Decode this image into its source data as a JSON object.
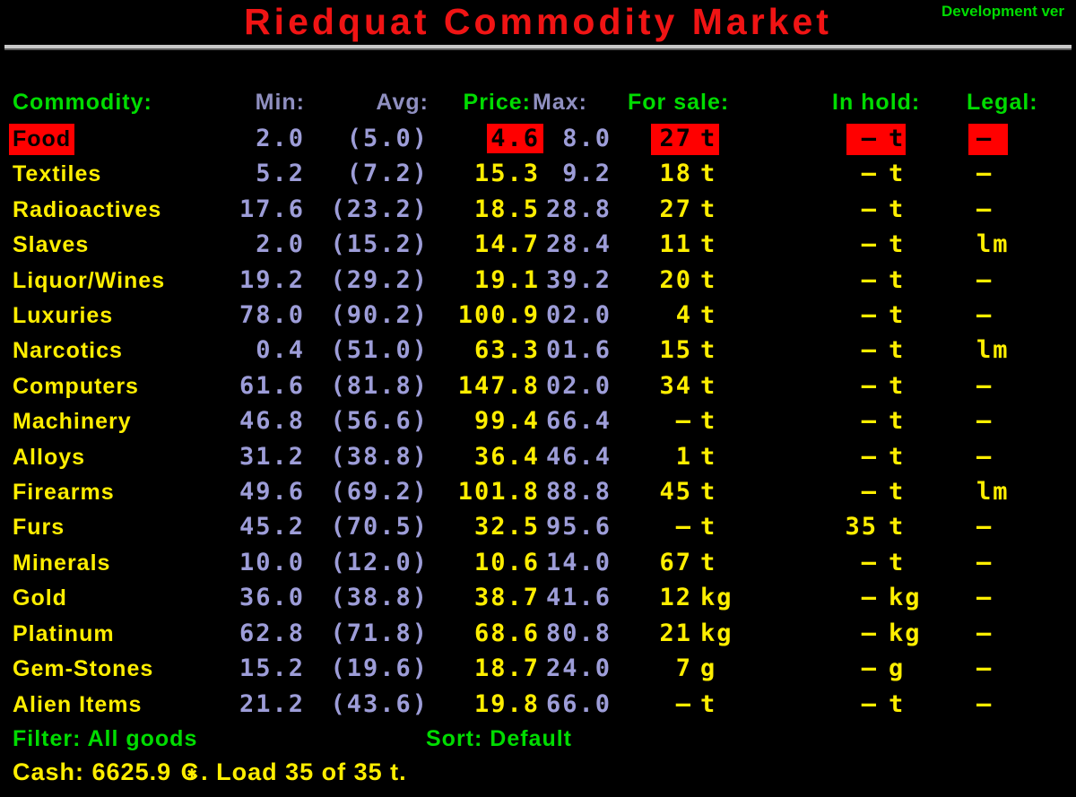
{
  "title": "Riedquat Commodity Market",
  "dev_version_label": "Development ver",
  "columns": {
    "commodity": "Commodity:",
    "min": "Min:",
    "avg": "Avg:",
    "price": "Price:",
    "max": "Max:",
    "for_sale": "For sale:",
    "in_hold": "In hold:",
    "legal": "Legal:"
  },
  "rows": [
    {
      "name": "Food",
      "min": "2.0",
      "avg": "(5.0)",
      "price": "4.6",
      "max": "8.0",
      "sale_qty": "27",
      "sale_unit": "t",
      "hold_qty": "—",
      "hold_unit": "t",
      "legal": "—",
      "selected": true
    },
    {
      "name": "Textiles",
      "min": "5.2",
      "avg": "(7.2)",
      "price": "15.3",
      "max": "9.2",
      "sale_qty": "18",
      "sale_unit": "t",
      "hold_qty": "—",
      "hold_unit": "t",
      "legal": "—",
      "selected": false
    },
    {
      "name": "Radioactives",
      "min": "17.6",
      "avg": "(23.2)",
      "price": "18.5",
      "max": "28.8",
      "sale_qty": "27",
      "sale_unit": "t",
      "hold_qty": "—",
      "hold_unit": "t",
      "legal": "—",
      "selected": false
    },
    {
      "name": "Slaves",
      "min": "2.0",
      "avg": "(15.2)",
      "price": "14.7",
      "max": "28.4",
      "sale_qty": "11",
      "sale_unit": "t",
      "hold_qty": "—",
      "hold_unit": "t",
      "legal": "lm",
      "selected": false
    },
    {
      "name": "Liquor/Wines",
      "min": "19.2",
      "avg": "(29.2)",
      "price": "19.1",
      "max": "39.2",
      "sale_qty": "20",
      "sale_unit": "t",
      "hold_qty": "—",
      "hold_unit": "t",
      "legal": "—",
      "selected": false
    },
    {
      "name": "Luxuries",
      "min": "78.0",
      "avg": "(90.2)",
      "price": "100.9",
      "max": "102.0",
      "sale_qty": "4",
      "sale_unit": "t",
      "hold_qty": "—",
      "hold_unit": "t",
      "legal": "—",
      "selected": false
    },
    {
      "name": "Narcotics",
      "min": "0.4",
      "avg": "(51.0)",
      "price": "63.3",
      "max": "101.6",
      "sale_qty": "15",
      "sale_unit": "t",
      "hold_qty": "—",
      "hold_unit": "t",
      "legal": "lm",
      "selected": false
    },
    {
      "name": "Computers",
      "min": "61.6",
      "avg": "(81.8)",
      "price": "147.8",
      "max": "102.0",
      "sale_qty": "34",
      "sale_unit": "t",
      "hold_qty": "—",
      "hold_unit": "t",
      "legal": "—",
      "selected": false
    },
    {
      "name": "Machinery",
      "min": "46.8",
      "avg": "(56.6)",
      "price": "99.4",
      "max": "66.4",
      "sale_qty": "—",
      "sale_unit": "t",
      "hold_qty": "—",
      "hold_unit": "t",
      "legal": "—",
      "selected": false
    },
    {
      "name": "Alloys",
      "min": "31.2",
      "avg": "(38.8)",
      "price": "36.4",
      "max": "46.4",
      "sale_qty": "1",
      "sale_unit": "t",
      "hold_qty": "—",
      "hold_unit": "t",
      "legal": "—",
      "selected": false
    },
    {
      "name": "Firearms",
      "min": "49.6",
      "avg": "(69.2)",
      "price": "101.8",
      "max": "88.8",
      "sale_qty": "45",
      "sale_unit": "t",
      "hold_qty": "—",
      "hold_unit": "t",
      "legal": "lm",
      "selected": false
    },
    {
      "name": "Furs",
      "min": "45.2",
      "avg": "(70.5)",
      "price": "32.5",
      "max": "95.6",
      "sale_qty": "—",
      "sale_unit": "t",
      "hold_qty": "35",
      "hold_unit": "t",
      "legal": "—",
      "selected": false
    },
    {
      "name": "Minerals",
      "min": "10.0",
      "avg": "(12.0)",
      "price": "10.6",
      "max": "14.0",
      "sale_qty": "67",
      "sale_unit": "t",
      "hold_qty": "—",
      "hold_unit": "t",
      "legal": "—",
      "selected": false
    },
    {
      "name": "Gold",
      "min": "36.0",
      "avg": "(38.8)",
      "price": "38.7",
      "max": "41.6",
      "sale_qty": "12",
      "sale_unit": "kg",
      "hold_qty": "—",
      "hold_unit": "kg",
      "legal": "—",
      "selected": false
    },
    {
      "name": "Platinum",
      "min": "62.8",
      "avg": "(71.8)",
      "price": "68.6",
      "max": "80.8",
      "sale_qty": "21",
      "sale_unit": "kg",
      "hold_qty": "—",
      "hold_unit": "kg",
      "legal": "—",
      "selected": false
    },
    {
      "name": "Gem-Stones",
      "min": "15.2",
      "avg": "(19.6)",
      "price": "18.7",
      "max": "24.0",
      "sale_qty": "7",
      "sale_unit": "g",
      "hold_qty": "—",
      "hold_unit": "g",
      "legal": "—",
      "selected": false
    },
    {
      "name": "Alien Items",
      "min": "21.2",
      "avg": "(43.6)",
      "price": "19.8",
      "max": "66.0",
      "sale_qty": "—",
      "sale_unit": "t",
      "hold_qty": "—",
      "hold_unit": "t",
      "legal": "—",
      "selected": false
    }
  ],
  "footer": {
    "filter_label": "Filter: All goods",
    "sort_label": "Sort: Default",
    "cash_prefix": "Cash: 6625.9 ",
    "credits_symbol": "C",
    "credits_star": "✱",
    "cash_suffix": ". Load 35 of 35 t."
  },
  "colors": {
    "title_red": "#f01414",
    "highlight_red": "#ff0000",
    "green": "#00dc00",
    "yellow": "#ffee00",
    "lavender": "#9d9dd8",
    "lavender_dim": "#8f8fc0"
  }
}
